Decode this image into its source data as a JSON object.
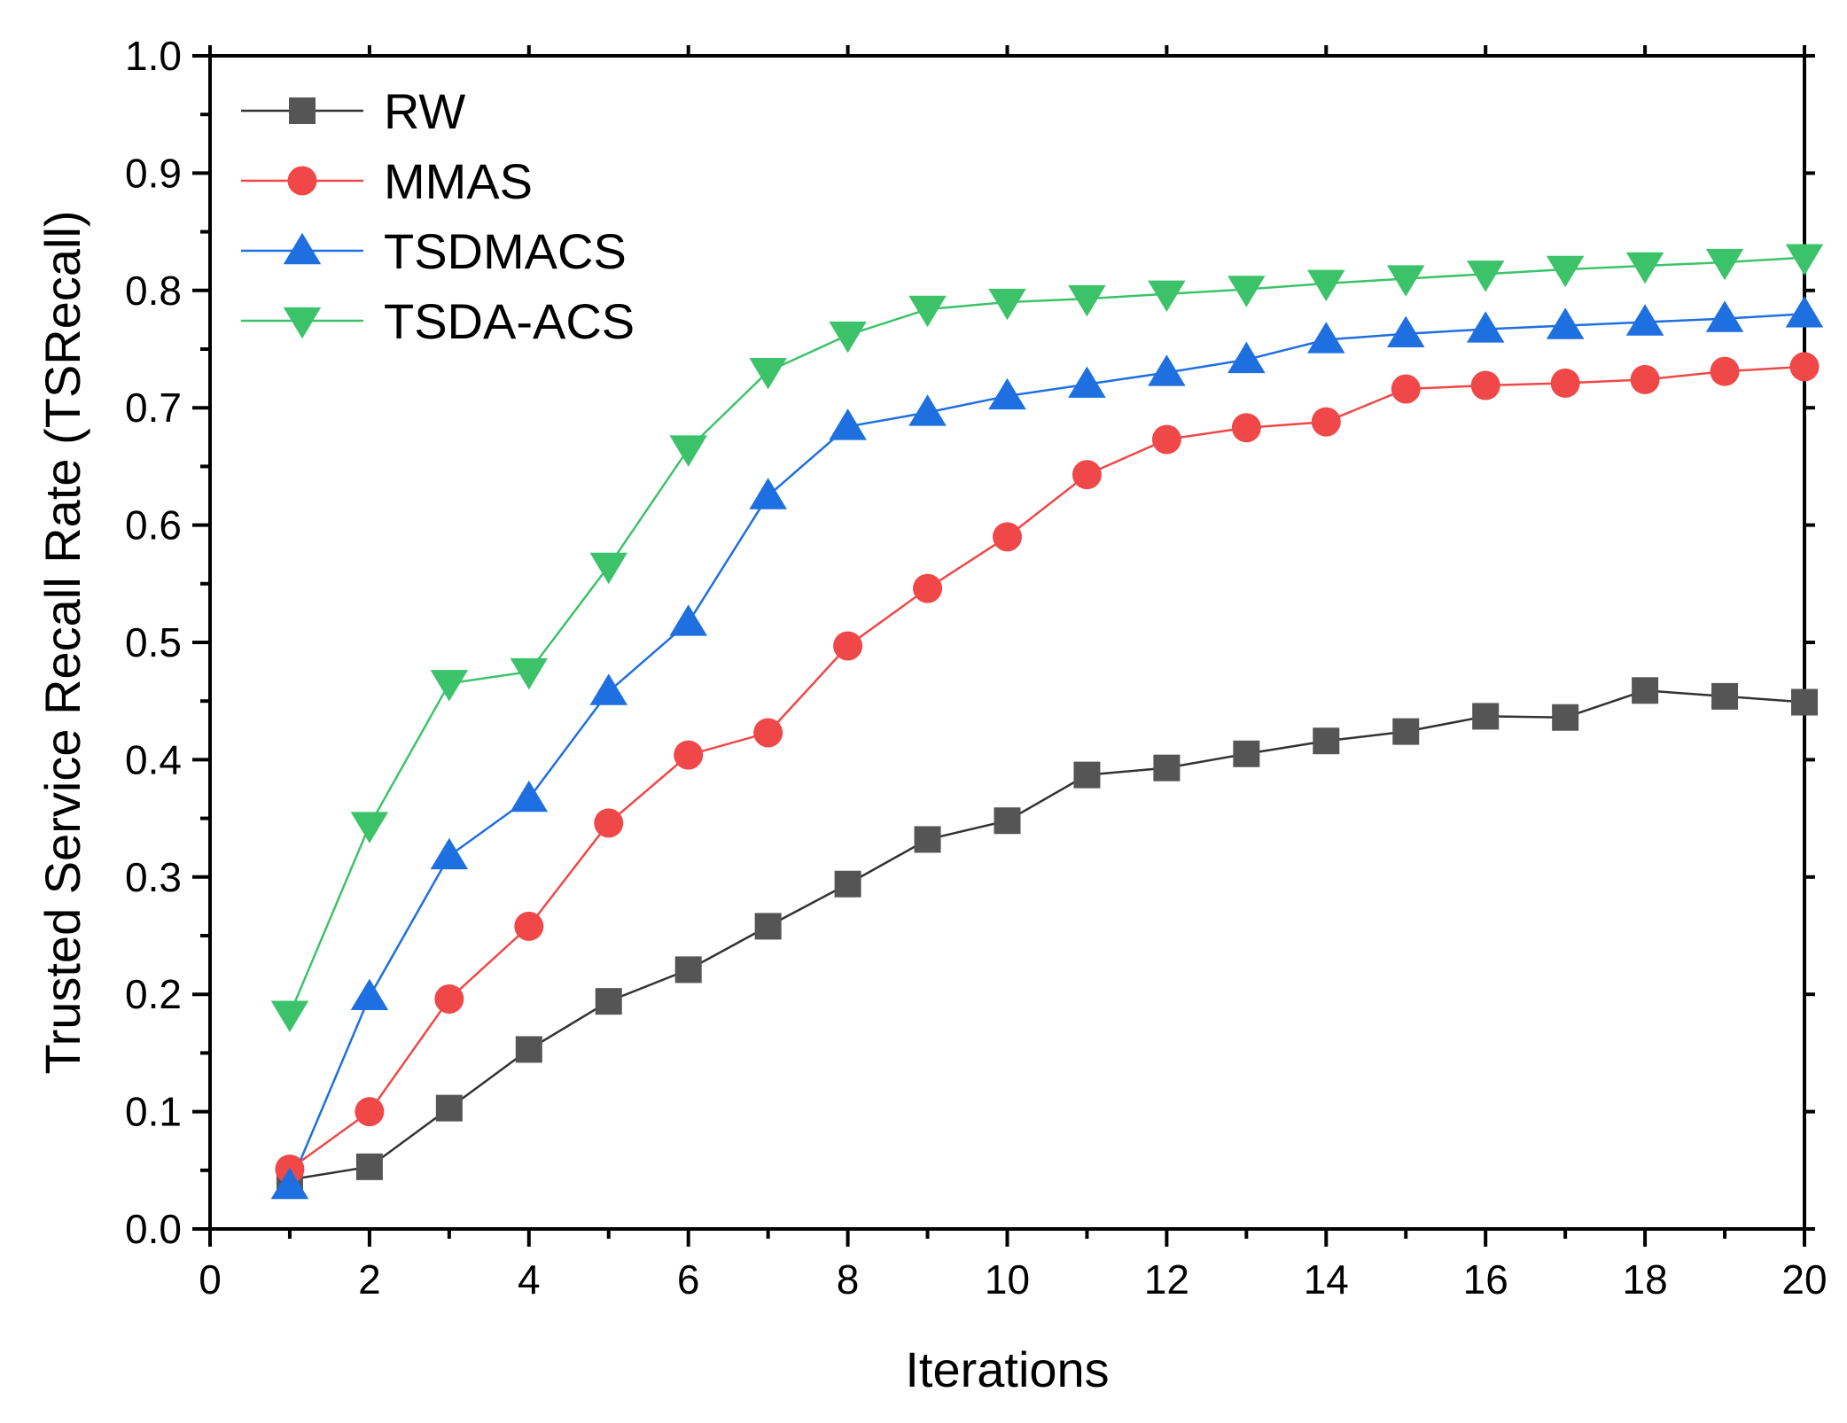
{
  "chart_data": {
    "type": "line",
    "title": "",
    "xlabel": "Iterations",
    "ylabel": "Trusted Service Recall Rate (TSRecall)",
    "xlim": [
      0,
      20
    ],
    "ylim": [
      0.0,
      1.0
    ],
    "xticks": [
      "0",
      "2",
      "4",
      "6",
      "8",
      "10",
      "12",
      "14",
      "16",
      "18",
      "20"
    ],
    "xtick_values": [
      0,
      2,
      4,
      6,
      8,
      10,
      12,
      14,
      16,
      18,
      20
    ],
    "yticks": [
      "0.0",
      "0.1",
      "0.2",
      "0.3",
      "0.4",
      "0.5",
      "0.6",
      "0.7",
      "0.8",
      "0.9",
      "1.0"
    ],
    "ytick_values": [
      0.0,
      0.1,
      0.2,
      0.3,
      0.4,
      0.5,
      0.6,
      0.7,
      0.8,
      0.9,
      1.0
    ],
    "grid": false,
    "legend_position": "top-left",
    "x": [
      1,
      2,
      3,
      4,
      5,
      6,
      7,
      8,
      9,
      10,
      11,
      12,
      13,
      14,
      15,
      16,
      17,
      18,
      19,
      20
    ],
    "series": [
      {
        "name": "RW",
        "marker": "square",
        "color": "#555555",
        "line_color": "#333333",
        "values": [
          0.042,
          0.053,
          0.103,
          0.153,
          0.194,
          0.221,
          0.258,
          0.294,
          0.332,
          0.348,
          0.387,
          0.393,
          0.405,
          0.416,
          0.424,
          0.437,
          0.436,
          0.459,
          0.454,
          0.449
        ]
      },
      {
        "name": "MMAS",
        "marker": "circle",
        "color": "#F04848",
        "line_color": "#F04848",
        "values": [
          0.051,
          0.1,
          0.196,
          0.258,
          0.346,
          0.404,
          0.423,
          0.497,
          0.546,
          0.59,
          0.643,
          0.673,
          0.683,
          0.688,
          0.716,
          0.719,
          0.721,
          0.724,
          0.731,
          0.735
        ]
      },
      {
        "name": "TSDMACS",
        "marker": "triangle-up",
        "color": "#1E6FE0",
        "line_color": "#1E6FE0",
        "values": [
          0.037,
          0.198,
          0.318,
          0.367,
          0.458,
          0.517,
          0.625,
          0.684,
          0.696,
          0.71,
          0.72,
          0.73,
          0.741,
          0.758,
          0.763,
          0.767,
          0.77,
          0.773,
          0.776,
          0.78
        ]
      },
      {
        "name": "TSDA-ACS",
        "marker": "triangle-down",
        "color": "#3CC36A",
        "line_color": "#3CC36A",
        "values": [
          0.183,
          0.344,
          0.465,
          0.475,
          0.565,
          0.665,
          0.731,
          0.762,
          0.784,
          0.79,
          0.793,
          0.797,
          0.801,
          0.806,
          0.81,
          0.814,
          0.818,
          0.821,
          0.824,
          0.828
        ]
      }
    ]
  }
}
